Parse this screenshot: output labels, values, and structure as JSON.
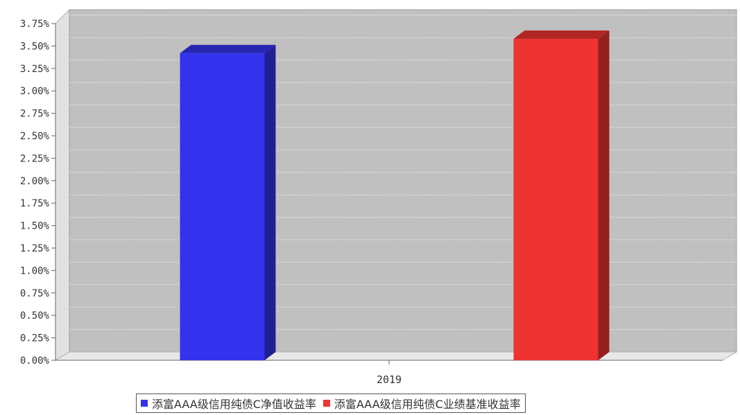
{
  "chart_data": {
    "type": "bar",
    "categories": [
      "2019"
    ],
    "series": [
      {
        "name": "添富AAA级信用纯债C净值收益率",
        "values": [
          3.42
        ],
        "color": "#3333ee"
      },
      {
        "name": "添富AAA级信用纯债C业绩基准收益率",
        "values": [
          3.58
        ],
        "color": "#ee3333"
      }
    ],
    "yticks": [
      "0.00%",
      "0.25%",
      "0.50%",
      "0.75%",
      "1.00%",
      "1.25%",
      "1.50%",
      "1.75%",
      "2.00%",
      "2.25%",
      "2.50%",
      "2.75%",
      "3.00%",
      "3.25%",
      "3.50%",
      "3.75%"
    ],
    "ylim": [
      0,
      3.75
    ],
    "grid": true,
    "legend_position": "bottom",
    "style": "3d",
    "plot_background": "#c0c0c0"
  }
}
